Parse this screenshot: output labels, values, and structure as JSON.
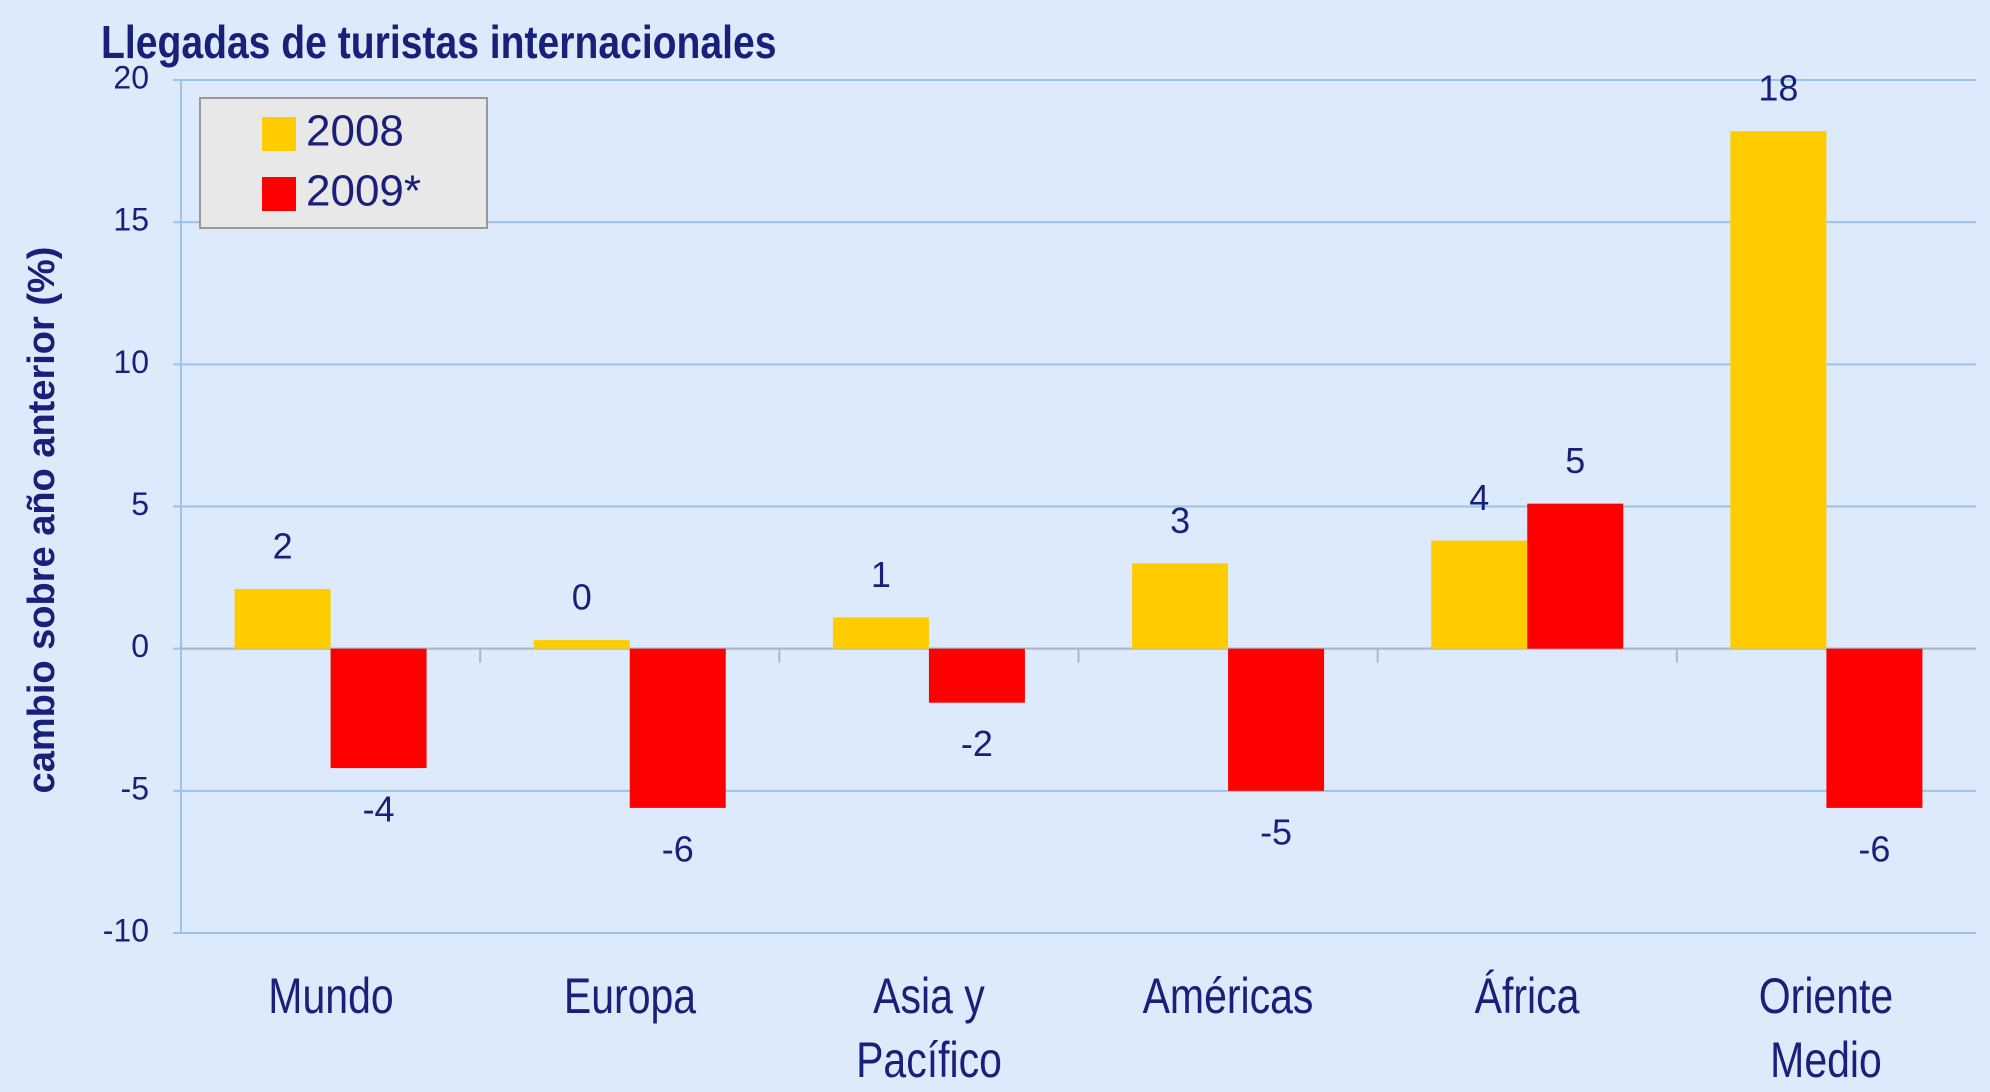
{
  "chart_data": {
    "type": "bar",
    "title": "Llegadas de turistas internacionales",
    "ylabel": "cambio sobre  año anterior (%)",
    "categories": [
      "Mundo",
      "Europa",
      "Asia y\nPacífico",
      "Américas",
      "África",
      "Oriente Medio"
    ],
    "series": [
      {
        "name": "2008",
        "color": "#ffcc00",
        "values": [
          2.1,
          0.3,
          1.1,
          3.0,
          3.8,
          18.2
        ],
        "value_labels": [
          "2",
          "0",
          "1",
          "3",
          "4",
          "18"
        ]
      },
      {
        "name": "2009*",
        "color": "#ff0000",
        "values": [
          -4.2,
          -5.6,
          -1.9,
          -5.0,
          5.1,
          -5.6
        ],
        "value_labels": [
          "-4",
          "-6",
          "-2",
          "-5",
          "5",
          "-6"
        ]
      }
    ],
    "ylim": [
      -10,
      20
    ],
    "yticks": [
      20,
      15,
      10,
      5,
      0,
      -5,
      -10
    ],
    "grid": true,
    "legend": "upper left"
  }
}
